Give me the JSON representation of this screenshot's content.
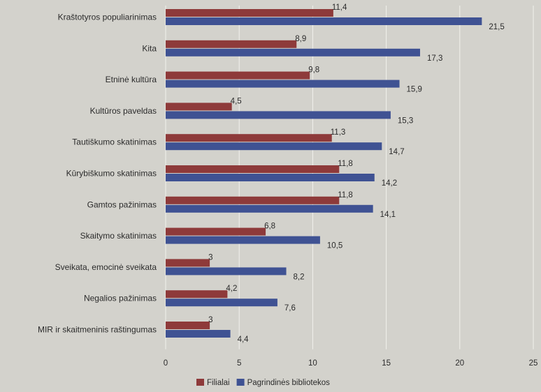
{
  "chart_data": {
    "type": "bar",
    "orientation": "horizontal",
    "categories": [
      "Kraštotyros populiarinimas",
      "Kita",
      "Etninė kultūra",
      "Kultūros paveldas",
      "Tautiškumo skatinimas",
      "Kūrybiškumo skatinimas",
      "Gamtos pažinimas",
      "Skaitymo skatinimas",
      "Sveikata, emocinė sveikata",
      "Negalios pažinimas",
      "MIR ir skaitmeninis raštingumas"
    ],
    "series": [
      {
        "name": "Filialai",
        "color": "#8e3a3a",
        "values": [
          11.4,
          8.9,
          9.8,
          4.5,
          11.3,
          11.8,
          11.8,
          6.8,
          3,
          4.2,
          3
        ],
        "labels": [
          "11,4",
          "8,9",
          "9,8",
          "4,5",
          "11,3",
          "11,8",
          "11,8",
          "6,8",
          "3",
          "4,2",
          "3"
        ]
      },
      {
        "name": "Pagrindinės bibliotekos",
        "color": "#3f5293",
        "values": [
          21.5,
          17.3,
          15.9,
          15.3,
          14.7,
          14.2,
          14.1,
          10.5,
          8.2,
          7.6,
          4.4
        ],
        "labels": [
          "21,5",
          "17,3",
          "15,9",
          "15,3",
          "14,7",
          "14,2",
          "14,1",
          "10,5",
          "8,2",
          "7,6",
          "4,4"
        ]
      }
    ],
    "xlim": [
      0,
      25
    ],
    "xticks": [
      0,
      5,
      10,
      15,
      20,
      25
    ],
    "grid": true,
    "legend_position": "bottom",
    "gridline_color": "#f2f1ec"
  }
}
